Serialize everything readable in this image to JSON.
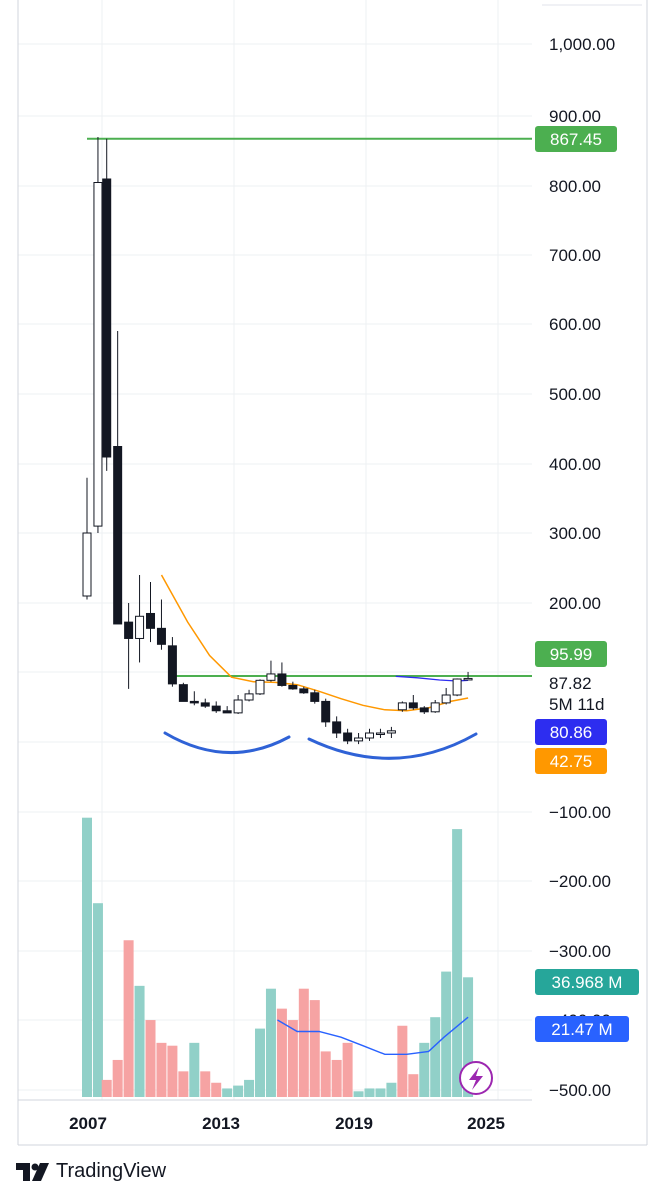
{
  "chart_data": {
    "type": "candlestick",
    "title": "",
    "price_axis": {
      "ticks": [
        "1,000.00",
        "900.00",
        "800.00",
        "700.00",
        "600.00",
        "500.00",
        "400.00",
        "300.00",
        "200.00"
      ],
      "tick_values": [
        1000,
        900,
        800,
        700,
        600,
        500,
        400,
        300,
        200
      ]
    },
    "volume_axis": {
      "ticks": [
        "−100.00",
        "−200.00",
        "−300.00",
        "−400.00",
        "−500.00"
      ]
    },
    "x_ticks": [
      "2007",
      "2013",
      "2019",
      "2025"
    ],
    "x_tick_years": [
      2007,
      2013,
      2019,
      2025
    ],
    "candles": [
      {
        "t": 2006.9,
        "o": 210,
        "h": 380,
        "l": 205,
        "c": 300
      },
      {
        "t": 2007.4,
        "o": 310,
        "h": 870,
        "l": 300,
        "c": 805
      },
      {
        "t": 2007.8,
        "o": 810,
        "h": 867.45,
        "l": 390,
        "c": 410
      },
      {
        "t": 2008.3,
        "o": 425,
        "h": 590,
        "l": 170,
        "c": 162
      },
      {
        "t": 2008.8,
        "o": 165,
        "h": 200,
        "l": 60,
        "c": 140
      },
      {
        "t": 2009.3,
        "o": 140,
        "h": 240,
        "l": 110,
        "c": 175
      },
      {
        "t": 2009.8,
        "o": 180,
        "h": 230,
        "l": 135,
        "c": 155
      },
      {
        "t": 2010.3,
        "o": 155,
        "h": 205,
        "l": 125,
        "c": 132
      },
      {
        "t": 2010.8,
        "o": 130,
        "h": 142,
        "l": 65,
        "c": 72
      },
      {
        "t": 2011.3,
        "o": 70,
        "h": 75,
        "l": 38,
        "c": 38
      },
      {
        "t": 2011.8,
        "o": 38,
        "h": 55,
        "l": 33,
        "c": 36
      },
      {
        "t": 2012.3,
        "o": 36,
        "h": 42,
        "l": 30,
        "c": 32
      },
      {
        "t": 2012.8,
        "o": 32,
        "h": 38,
        "l": 25,
        "c": 27
      },
      {
        "t": 2013.3,
        "o": 27,
        "h": 32,
        "l": 25,
        "c": 25
      },
      {
        "t": 2013.8,
        "o": 25,
        "h": 48,
        "l": 24,
        "c": 40
      },
      {
        "t": 2014.3,
        "o": 40,
        "h": 58,
        "l": 38,
        "c": 50
      },
      {
        "t": 2014.8,
        "o": 50,
        "h": 85,
        "l": 48,
        "c": 82
      },
      {
        "t": 2015.3,
        "o": 82,
        "h": 112,
        "l": 78,
        "c": 98
      },
      {
        "t": 2015.8,
        "o": 98,
        "h": 110,
        "l": 65,
        "c": 68
      },
      {
        "t": 2016.3,
        "o": 68,
        "h": 78,
        "l": 58,
        "c": 60
      },
      {
        "t": 2016.8,
        "o": 60,
        "h": 65,
        "l": 50,
        "c": 52
      },
      {
        "t": 2017.3,
        "o": 52,
        "h": 58,
        "l": 35,
        "c": 38
      },
      {
        "t": 2017.8,
        "o": 38,
        "h": 42,
        "l": 15,
        "c": 18
      },
      {
        "t": 2018.3,
        "o": 18,
        "h": 22,
        "l": 10,
        "c": 12
      },
      {
        "t": 2018.8,
        "o": 12,
        "h": 14,
        "l": 8,
        "c": 9
      },
      {
        "t": 2019.3,
        "o": 9,
        "h": 12,
        "l": 8,
        "c": 10
      },
      {
        "t": 2019.8,
        "o": 10,
        "h": 14,
        "l": 9,
        "c": 12
      },
      {
        "t": 2020.3,
        "o": 12,
        "h": 14,
        "l": 10,
        "c": 12
      },
      {
        "t": 2020.8,
        "o": 12,
        "h": 15,
        "l": 10,
        "c": 13
      },
      {
        "t": 2021.3,
        "o": 28,
        "h": 38,
        "l": 26,
        "c": 36
      },
      {
        "t": 2021.8,
        "o": 36,
        "h": 48,
        "l": 28,
        "c": 30
      },
      {
        "t": 2022.3,
        "o": 30,
        "h": 32,
        "l": 24,
        "c": 26
      },
      {
        "t": 2022.8,
        "o": 26,
        "h": 40,
        "l": 25,
        "c": 36
      },
      {
        "t": 2023.3,
        "o": 36,
        "h": 62,
        "l": 34,
        "c": 48
      },
      {
        "t": 2023.8,
        "o": 48,
        "h": 88,
        "l": 46,
        "c": 86
      },
      {
        "t": 2024.3,
        "o": 86,
        "h": 100,
        "l": 84,
        "c": 87.82
      }
    ],
    "series": [
      {
        "name": "",
        "values": [
          [
            2010.3,
            240
          ],
          [
            2011.5,
            165
          ],
          [
            2012.5,
            118
          ],
          [
            2013.5,
            92
          ],
          [
            2014.5,
            78
          ],
          [
            2015.5,
            76
          ],
          [
            2016.5,
            70
          ],
          [
            2017.5,
            55
          ],
          [
            2018.5,
            42
          ],
          [
            2019.5,
            33
          ],
          [
            2020.5,
            28
          ],
          [
            2021.5,
            27
          ],
          [
            2022.5,
            30
          ],
          [
            2023.5,
            38
          ],
          [
            2024.3,
            43
          ]
        ]
      },
      {
        "name": "",
        "values": [
          [
            2021.0,
            95
          ],
          [
            2022.0,
            90
          ],
          [
            2023.0,
            83
          ],
          [
            2023.8,
            80
          ],
          [
            2024.3,
            82
          ]
        ]
      }
    ],
    "hlines": [
      867.45,
      95.99
    ],
    "price_labels": [
      {
        "text": "867.45",
        "value": 867.45,
        "color": "#4caf50"
      },
      {
        "text": "95.99",
        "value": 95.99,
        "color": "#4caf50"
      },
      {
        "text": "80.86",
        "value": 80.86,
        "color": "#2d2df0"
      },
      {
        "text": "42.75",
        "value": 42.75,
        "color": "#ff9800"
      }
    ],
    "last_price": {
      "value": "87.82",
      "countdown": "5M 11d"
    },
    "volume": {
      "bars": [
        {
          "t": 2006.9,
          "v": 0.98,
          "up": true
        },
        {
          "t": 2007.4,
          "v": 0.68,
          "up": true
        },
        {
          "t": 2007.8,
          "v": 0.06,
          "up": false
        },
        {
          "t": 2008.3,
          "v": 0.13,
          "up": false
        },
        {
          "t": 2008.8,
          "v": 0.55,
          "up": false
        },
        {
          "t": 2009.3,
          "v": 0.39,
          "up": true
        },
        {
          "t": 2009.8,
          "v": 0.27,
          "up": false
        },
        {
          "t": 2010.3,
          "v": 0.19,
          "up": false
        },
        {
          "t": 2010.8,
          "v": 0.18,
          "up": false
        },
        {
          "t": 2011.3,
          "v": 0.09,
          "up": false
        },
        {
          "t": 2011.8,
          "v": 0.19,
          "up": true
        },
        {
          "t": 2012.3,
          "v": 0.09,
          "up": false
        },
        {
          "t": 2012.8,
          "v": 0.05,
          "up": false
        },
        {
          "t": 2013.3,
          "v": 0.03,
          "up": true
        },
        {
          "t": 2013.8,
          "v": 0.04,
          "up": true
        },
        {
          "t": 2014.3,
          "v": 0.06,
          "up": true
        },
        {
          "t": 2014.8,
          "v": 0.24,
          "up": true
        },
        {
          "t": 2015.3,
          "v": 0.38,
          "up": true
        },
        {
          "t": 2015.8,
          "v": 0.31,
          "up": false
        },
        {
          "t": 2016.3,
          "v": 0.27,
          "up": false
        },
        {
          "t": 2016.8,
          "v": 0.38,
          "up": false
        },
        {
          "t": 2017.3,
          "v": 0.34,
          "up": false
        },
        {
          "t": 2017.8,
          "v": 0.16,
          "up": false
        },
        {
          "t": 2018.3,
          "v": 0.13,
          "up": false
        },
        {
          "t": 2018.8,
          "v": 0.19,
          "up": false
        },
        {
          "t": 2019.3,
          "v": 0.02,
          "up": true
        },
        {
          "t": 2019.8,
          "v": 0.03,
          "up": true
        },
        {
          "t": 2020.3,
          "v": 0.03,
          "up": true
        },
        {
          "t": 2020.8,
          "v": 0.05,
          "up": true
        },
        {
          "t": 2021.3,
          "v": 0.25,
          "up": false
        },
        {
          "t": 2021.8,
          "v": 0.08,
          "up": false
        },
        {
          "t": 2022.3,
          "v": 0.19,
          "up": true
        },
        {
          "t": 2022.8,
          "v": 0.28,
          "up": true
        },
        {
          "t": 2023.3,
          "v": 0.44,
          "up": true
        },
        {
          "t": 2023.8,
          "v": 0.94,
          "up": true
        },
        {
          "t": 2024.3,
          "v": 0.42,
          "up": true
        }
      ],
      "ma": [
        [
          2015.6,
          0.27
        ],
        [
          2016.5,
          0.23
        ],
        [
          2017.5,
          0.23
        ],
        [
          2018.5,
          0.21
        ],
        [
          2019.5,
          0.18
        ],
        [
          2020.5,
          0.15
        ],
        [
          2021.5,
          0.15
        ],
        [
          2022.5,
          0.16
        ],
        [
          2023.2,
          0.21
        ],
        [
          2024.3,
          0.28
        ]
      ],
      "labels": [
        {
          "text": "36.968 M",
          "color": "#26a69a"
        },
        {
          "text": "21.47 M",
          "color": "#2962ff"
        }
      ]
    },
    "colors": {
      "up_fill": "#ffffff",
      "down_fill": "#131722",
      "hline": "#4caf50",
      "ma1": "#ff9800",
      "ma2": "#2d2df0",
      "vol_up": "#91d0c8",
      "vol_down": "#f6a3a3",
      "arc": "#2f62d6"
    },
    "grid": true,
    "y_scale": "log"
  },
  "brand": {
    "name": "TradingView"
  },
  "icons": {
    "floating": "lightning-icon",
    "logo": "tradingview-logo-icon"
  }
}
